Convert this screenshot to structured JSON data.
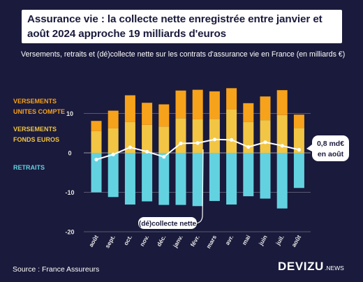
{
  "title": "Assurance vie : la collecte nette enregistrée entre janvier et août 2024 approche 19 milliards d'euros",
  "subtitle": "Versements, retraits et (dé)collecte nette sur les contrats d'assurance vie en France (en milliards €)",
  "legend": {
    "uc_line1": "VERSEMENTS",
    "uc_line2": "UNITES COMPTE",
    "fe_line1": "VERSEMENTS",
    "fe_line2": "FONDS EUROS",
    "retraits": "RETRAITS"
  },
  "annotations": {
    "decollecte": "(dé)collecte nette",
    "callout_line1": "0,8 md€",
    "callout_line2": "en août"
  },
  "source": "Source : France Assureurs",
  "brand": {
    "main": "DEVIZU",
    "sub": ".NEWS"
  },
  "colors": {
    "background": "#1a1a3c",
    "uc": "#f7a21b",
    "fonds_euros": "#f2c544",
    "retraits": "#63d2e0",
    "net": "#ffffff",
    "axis_text": "#e6e6e6"
  },
  "chart_data": {
    "type": "bar",
    "categories": [
      "août",
      "sept.",
      "oct.",
      "nov.",
      "déc.",
      "janv.",
      "févr.",
      "mars",
      "avr.",
      "mai",
      "juin",
      "juil.",
      "août"
    ],
    "series": [
      {
        "name": "VERSEMENTS FONDS EUROS",
        "values": [
          5.5,
          6.2,
          7.8,
          7.1,
          6.7,
          8.8,
          8.5,
          8.6,
          11.1,
          7.8,
          8.3,
          9.6,
          6.3
        ]
      },
      {
        "name": "VERSEMENTS UNITES COMPTE",
        "values": [
          2.6,
          4.5,
          6.8,
          5.6,
          5.6,
          7.0,
          7.5,
          7.0,
          5.3,
          4.8,
          6.0,
          6.3,
          3.4
        ]
      },
      {
        "name": "RETRAITS",
        "values": [
          -10.0,
          -11.2,
          -13.1,
          -12.3,
          -13.2,
          -13.2,
          -13.5,
          -12.2,
          -13.1,
          -11.0,
          -11.6,
          -14.1,
          -8.9
        ]
      },
      {
        "name": "(dé)collecte nette",
        "values": [
          -1.7,
          -0.4,
          1.4,
          0.3,
          -1.0,
          2.4,
          2.5,
          3.4,
          3.3,
          1.5,
          2.7,
          1.8,
          0.8
        ]
      }
    ],
    "yticks": [
      -20,
      -10,
      0,
      10
    ],
    "ylim": [
      -21,
      19
    ],
    "grid": true,
    "legend": "left"
  }
}
